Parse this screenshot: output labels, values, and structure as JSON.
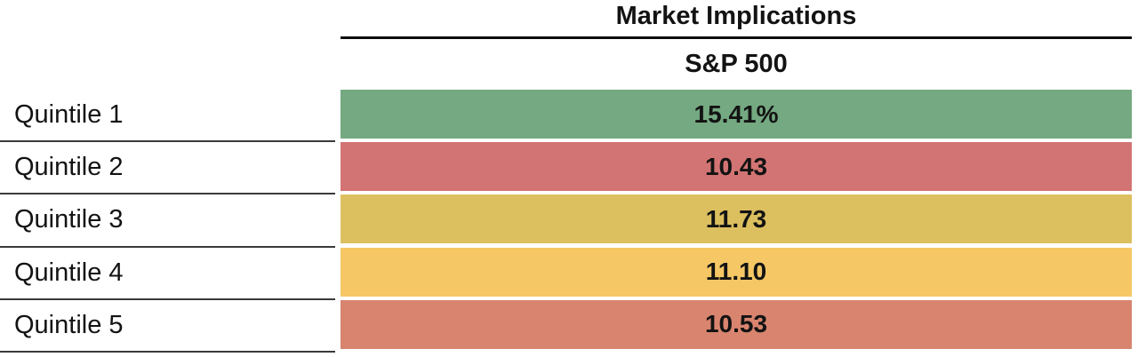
{
  "title": "Market Implications",
  "column_header": "S&P 500",
  "rows": [
    {
      "label": "Quintile 1",
      "value": "15.41%",
      "color": "#74A981"
    },
    {
      "label": "Quintile 2",
      "value": "10.43",
      "color": "#D27473"
    },
    {
      "label": "Quintile 3",
      "value": "11.73",
      "color": "#DCBF5F"
    },
    {
      "label": "Quintile 4",
      "value": "11.10",
      "color": "#F5C765"
    },
    {
      "label": "Quintile 5",
      "value": "10.53",
      "color": "#D8846F"
    }
  ],
  "colors": {
    "header_divider": "#0d0d0d",
    "row_divider": "#3a3a3a",
    "text": "#131313",
    "background": "#ffffff"
  },
  "chart_data": {
    "type": "table",
    "title": "Market Implications",
    "column_header": "S&P 500",
    "categories": [
      "Quintile 1",
      "Quintile 2",
      "Quintile 3",
      "Quintile 4",
      "Quintile 5"
    ],
    "values": [
      15.41,
      10.43,
      11.73,
      11.1,
      10.53
    ],
    "value_labels": [
      "15.41%",
      "10.43",
      "11.73",
      "11.10",
      "10.53"
    ],
    "cell_colors": [
      "#74A981",
      "#D27473",
      "#DCBF5F",
      "#F5C765",
      "#D8846F"
    ],
    "grid": "horizontal dividers on label column only",
    "legend_position": "none"
  }
}
